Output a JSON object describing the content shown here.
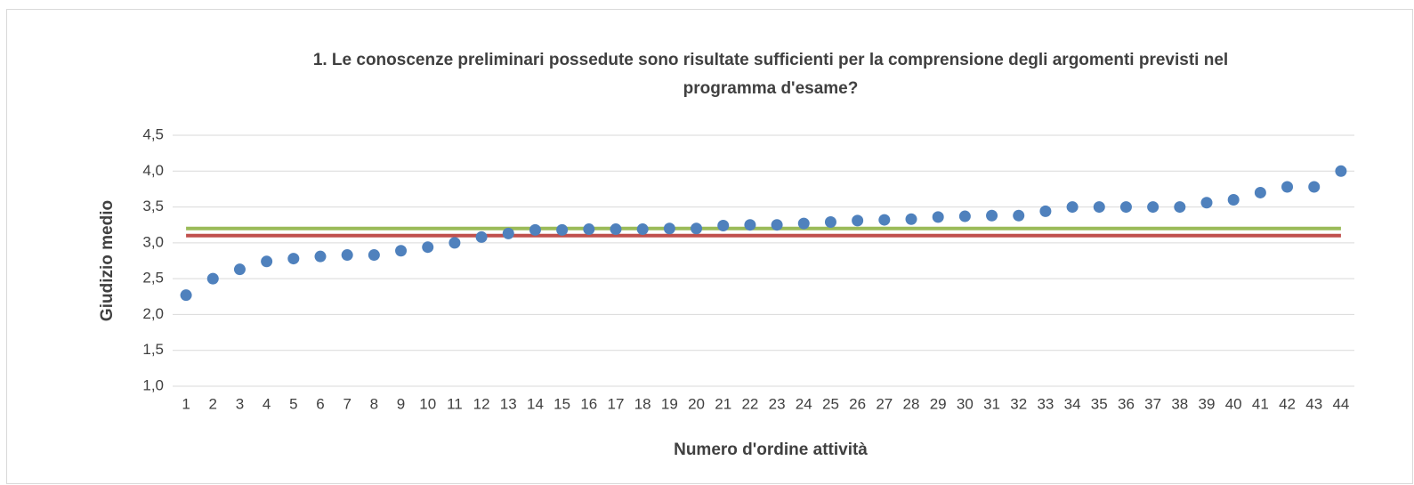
{
  "chart_data": {
    "type": "scatter",
    "title": "1. Le conoscenze preliminari possedute sono risultate sufficienti per la comprensione degli argomenti previsti nel",
    "subtitle": "programma d'esame?",
    "x_label": "Numero d'ordine attività",
    "y_label": "Giudizio medio",
    "categories": [
      1,
      2,
      3,
      4,
      5,
      6,
      7,
      8,
      9,
      10,
      11,
      12,
      13,
      14,
      15,
      16,
      17,
      18,
      19,
      20,
      21,
      22,
      23,
      24,
      25,
      26,
      27,
      28,
      29,
      30,
      31,
      32,
      33,
      34,
      35,
      36,
      37,
      38,
      39,
      40,
      41,
      42,
      43,
      44
    ],
    "values": [
      2.27,
      2.5,
      2.63,
      2.74,
      2.78,
      2.81,
      2.83,
      2.83,
      2.89,
      2.94,
      3.0,
      3.08,
      3.13,
      3.18,
      3.18,
      3.19,
      3.19,
      3.19,
      3.2,
      3.2,
      3.24,
      3.25,
      3.25,
      3.27,
      3.29,
      3.31,
      3.32,
      3.33,
      3.36,
      3.37,
      3.38,
      3.38,
      3.44,
      3.5,
      3.5,
      3.5,
      3.5,
      3.5,
      3.56,
      3.6,
      3.7,
      3.78,
      3.78,
      4.0
    ],
    "color": "#4f81bd",
    "reference_lines": [
      {
        "value": 3.2,
        "color": "#9bbb59"
      },
      {
        "value": 3.1,
        "color": "#c0504d"
      }
    ],
    "ylim": [
      1.0,
      4.5
    ],
    "yticks": [
      {
        "value": 1.0,
        "label": "1,0"
      },
      {
        "value": 1.5,
        "label": "1,5"
      },
      {
        "value": 2.0,
        "label": "2,0"
      },
      {
        "value": 2.5,
        "label": "2,5"
      },
      {
        "value": 3.0,
        "label": "3,0"
      },
      {
        "value": 3.5,
        "label": "3,5"
      },
      {
        "value": 4.0,
        "label": "4,0"
      },
      {
        "value": 4.5,
        "label": "4,5"
      }
    ],
    "grid": true
  }
}
